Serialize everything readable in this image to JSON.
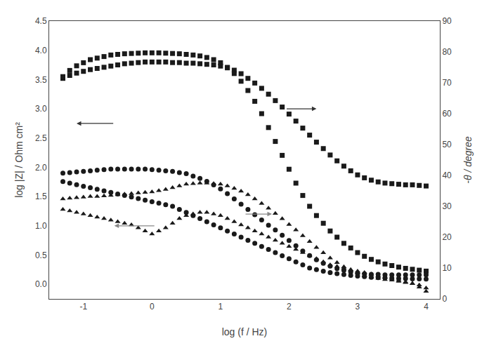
{
  "chart_data": {
    "type": "scatter",
    "xlabel": "log (f / Hz)",
    "ylabel": "log |Z| / Ohm cm²",
    "y2label": "-θ / degree",
    "xlim": [
      -1.5,
      4.2
    ],
    "ylim": [
      -0.25,
      4.5
    ],
    "y2lim": [
      0,
      90
    ],
    "xticks": [
      -1,
      0,
      1,
      2,
      3,
      4
    ],
    "yticks": [
      {
        "value": 0,
        "label": "0.0"
      },
      0.5,
      {
        "value": 1,
        "label": "1.0"
      },
      1.5,
      {
        "value": 2,
        "label": "2.0"
      },
      2.5,
      {
        "value": 3,
        "label": "3.0"
      },
      3.5,
      {
        "value": 4,
        "label": "4.0"
      },
      4.5
    ],
    "y2ticks": [
      0,
      10,
      20,
      30,
      40,
      50,
      60,
      70,
      80,
      90
    ],
    "grid": false,
    "x": [
      -1.3,
      -1.2,
      -1.1,
      -1.0,
      -0.9,
      -0.8,
      -0.7,
      -0.6,
      -0.5,
      -0.4,
      -0.3,
      -0.2,
      -0.1,
      0.0,
      0.1,
      0.2,
      0.3,
      0.4,
      0.5,
      0.6,
      0.7,
      0.8,
      0.9,
      1.0,
      1.1,
      1.2,
      1.3,
      1.4,
      1.5,
      1.6,
      1.7,
      1.8,
      1.9,
      2.0,
      2.1,
      2.2,
      2.3,
      2.4,
      2.5,
      2.6,
      2.7,
      2.8,
      2.9,
      3.0,
      3.1,
      3.2,
      3.3,
      3.4,
      3.5,
      3.6,
      3.7,
      3.8,
      3.9,
      4.0
    ],
    "series": [
      {
        "marker": "square",
        "color": "#1a1a1a",
        "values": [
          3.52,
          3.57,
          3.61,
          3.64,
          3.67,
          3.69,
          3.71,
          3.73,
          3.75,
          3.77,
          3.78,
          3.79,
          3.8,
          3.8,
          3.8,
          3.8,
          3.79,
          3.79,
          3.78,
          3.78,
          3.77,
          3.76,
          3.75,
          3.73,
          3.7,
          3.66,
          3.6,
          3.52,
          3.44,
          3.35,
          3.25,
          3.14,
          3.03,
          2.91,
          2.79,
          2.67,
          2.55,
          2.43,
          2.32,
          2.21,
          2.11,
          2.02,
          1.94,
          1.87,
          1.82,
          1.78,
          1.75,
          1.73,
          1.72,
          1.71,
          1.7,
          1.7,
          1.69,
          1.68
        ]
      },
      {
        "marker": "circle",
        "color": "#1a1a1a",
        "values": [
          1.9,
          1.91,
          1.92,
          1.93,
          1.94,
          1.95,
          1.96,
          1.97,
          1.97,
          1.97,
          1.97,
          1.97,
          1.97,
          1.96,
          1.95,
          1.94,
          1.93,
          1.91,
          1.89,
          1.85,
          1.81,
          1.76,
          1.7,
          1.63,
          1.55,
          1.46,
          1.37,
          1.28,
          1.19,
          1.1,
          1.01,
          0.93,
          0.84,
          0.75,
          0.66,
          0.57,
          0.49,
          0.42,
          0.36,
          0.31,
          0.27,
          0.24,
          0.21,
          0.19,
          0.18,
          0.17,
          0.17,
          0.16,
          0.16,
          0.16,
          0.16,
          0.16,
          0.16,
          0.16
        ]
      },
      {
        "marker": "triangle-up",
        "color": "#1a1a1a",
        "values": [
          1.46,
          1.47,
          1.48,
          1.49,
          1.5,
          1.5,
          1.51,
          1.52,
          1.53,
          1.54,
          1.55,
          1.56,
          1.57,
          1.58,
          1.6,
          1.62,
          1.65,
          1.68,
          1.71,
          1.72,
          1.73,
          1.73,
          1.72,
          1.71,
          1.68,
          1.64,
          1.59,
          1.53,
          1.46,
          1.38,
          1.3,
          1.21,
          1.12,
          1.02,
          0.93,
          0.83,
          0.73,
          0.63,
          0.54,
          0.45,
          0.37,
          0.3,
          0.24,
          0.19,
          0.15,
          0.12,
          0.1,
          0.08,
          0.07,
          0.05,
          0.03,
          0.01,
          -0.05,
          -0.12
        ]
      },
      {
        "marker": "square",
        "color": "#1a1a1a",
        "axis": "y2",
        "values": [
          72,
          74,
          75.5,
          76.5,
          77.5,
          78,
          78.5,
          79,
          79.2,
          79.4,
          79.5,
          79.6,
          79.7,
          79.7,
          79.7,
          79.6,
          79.5,
          79.4,
          79.2,
          79.0,
          78.7,
          78.2,
          77.5,
          76.5,
          75.0,
          73.0,
          70.5,
          67.5,
          64.0,
          60.0,
          55.5,
          51.0,
          46.5,
          42.0,
          37.5,
          33.5,
          30.0,
          27.0,
          24.5,
          22.0,
          20.0,
          18.0,
          16.5,
          15.0,
          13.8,
          12.8,
          12.0,
          11.3,
          10.8,
          10.3,
          9.9,
          9.6,
          9.3,
          9.0
        ]
      },
      {
        "marker": "circle",
        "color": "#1a1a1a",
        "axis": "y2",
        "values": [
          38,
          37.5,
          37,
          36.5,
          36,
          35.5,
          35,
          34.5,
          34,
          33.5,
          33,
          32.5,
          32,
          31.5,
          31,
          30.5,
          30,
          29,
          28,
          27,
          26,
          25,
          24,
          23,
          22,
          21,
          20,
          19,
          18,
          17,
          16,
          15,
          14,
          13,
          12,
          11,
          10,
          9.5,
          9.0,
          8.5,
          8.2,
          7.9,
          7.6,
          7.4,
          7.2,
          7.0,
          6.9,
          6.8,
          6.7,
          6.6,
          6.6,
          6.5,
          6.5,
          6.4
        ]
      },
      {
        "marker": "triangle-up",
        "color": "#1a1a1a",
        "axis": "y2",
        "values": [
          29,
          28.5,
          28,
          27.5,
          27,
          26.5,
          26,
          25.5,
          25,
          24.5,
          24,
          23,
          22,
          21,
          22,
          23,
          24.5,
          26,
          27,
          27.5,
          28,
          28,
          27.5,
          27,
          26,
          25,
          24,
          23,
          22,
          21,
          20,
          19,
          18,
          17,
          16,
          15,
          14,
          13,
          12,
          11,
          10.5,
          10,
          9.5,
          9,
          8.5,
          8,
          7.5,
          7,
          6.5,
          6,
          5.5,
          5,
          4.5,
          3.5
        ]
      }
    ],
    "arrows": [
      {
        "x_start": -0.55,
        "x_end": -1.1,
        "y": 2.75,
        "color": "#333333"
      },
      {
        "x_start": 1.95,
        "x_end": 2.4,
        "y": 3.0,
        "color": "#333333"
      },
      {
        "x_start": 0.05,
        "x_end": -0.55,
        "y": 1.0,
        "color": "#888888"
      },
      {
        "x_start": 1.35,
        "x_end": 1.75,
        "y": 1.2,
        "color": "#888888"
      }
    ]
  }
}
